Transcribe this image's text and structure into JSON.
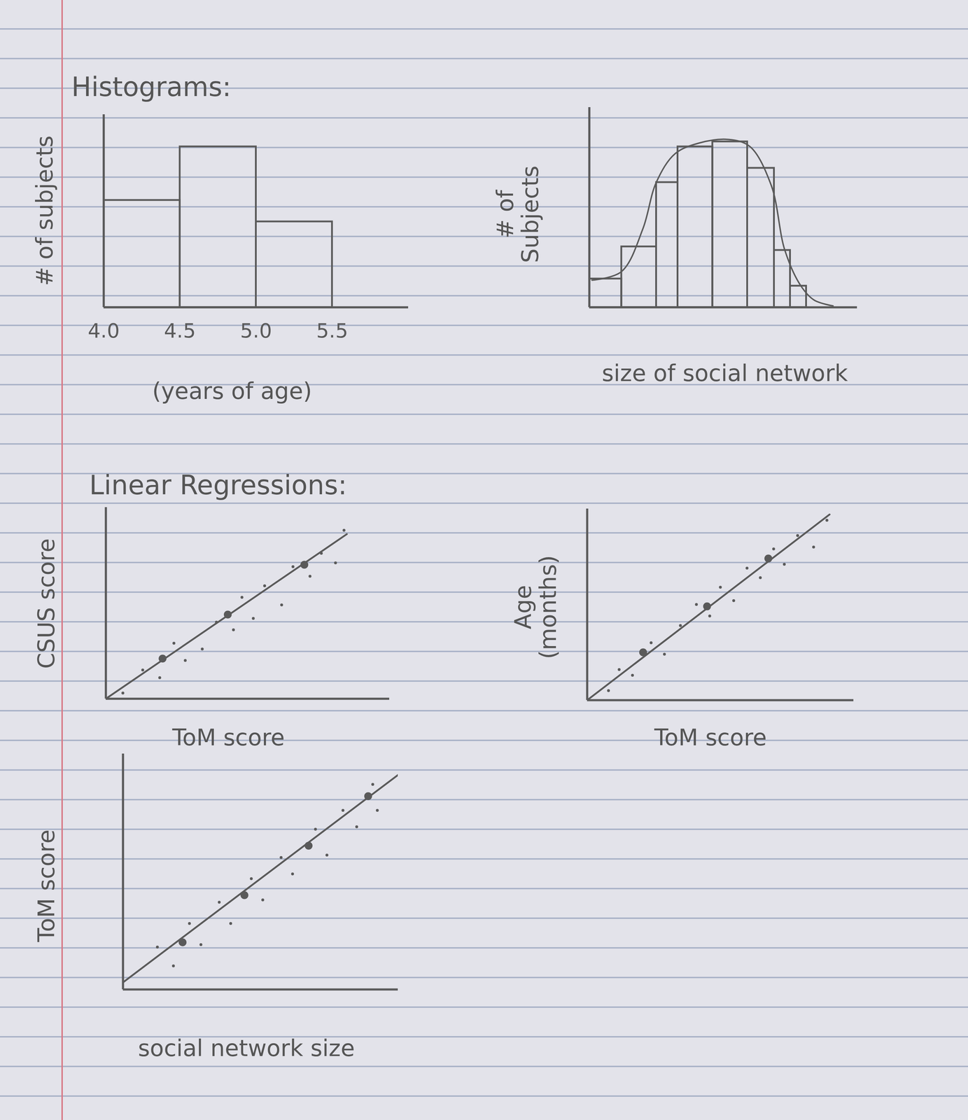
{
  "chart_data": [
    {
      "type": "histogram",
      "title": "Histograms:",
      "x_label": "(years of age)",
      "y_label": "# of subjects",
      "bins": [
        4,
        4.5,
        5,
        5.5
      ],
      "counts": [
        10,
        15,
        8
      ],
      "xlim": [
        4,
        6
      ],
      "ylim": [
        0,
        18
      ],
      "xticks": [
        4,
        4.5,
        5,
        5.5
      ],
      "tick_labels": "x",
      "color": "#5a5a5a"
    },
    {
      "type": "histogram",
      "x_label": "size of social network",
      "y_label": "# of Subjects",
      "bins": [
        0,
        1.2,
        2.5,
        3.3,
        4.6,
        5.9,
        6.9,
        7.5,
        8.1
      ],
      "counts": [
        40,
        85,
        175,
        225,
        232,
        195,
        80,
        30
      ],
      "curve": {
        "x": [
          0.1,
          1.2,
          2,
          2.5,
          3.2,
          4.1,
          5.2,
          6,
          6.8,
          7.3,
          7.9,
          8.4,
          9.1
        ],
        "values": [
          38,
          50,
          110,
          175,
          215,
          230,
          235,
          225,
          170,
          80,
          30,
          10,
          2
        ]
      },
      "xlim": [
        0,
        10
      ],
      "ylim": [
        0,
        280
      ],
      "tick_labels": false,
      "color": "#5a5a5a"
    },
    {
      "type": "scatter",
      "title": "Linear Regressions:",
      "x_label": "ToM score",
      "y_label": "CSUS score",
      "x": [
        0.6,
        1.3,
        1.9,
        2.4,
        2.8,
        3.4,
        3.9,
        4.5,
        4.8,
        5.2,
        5.6,
        6.2,
        6.6,
        7.2,
        7.6,
        8.1,
        8.4
      ],
      "values": [
        0.3,
        1.5,
        1.1,
        2.9,
        2.0,
        2.6,
        4.0,
        3.6,
        5.3,
        4.2,
        5.9,
        4.9,
        6.9,
        6.4,
        7.6,
        7.1,
        8.8
      ],
      "line": {
        "x": [
          0,
          8.5
        ],
        "values": [
          0,
          8.6
        ]
      },
      "highlight": {
        "x": [
          2.0,
          4.3,
          7.0
        ],
        "values": [
          2.1,
          4.4,
          7.0
        ]
      },
      "xlim": [
        0,
        10
      ],
      "ylim": [
        0,
        10
      ],
      "tick_labels": false,
      "color": "#5a5a5a"
    },
    {
      "type": "scatter",
      "x_label": "ToM score",
      "y_label": "Age (months)",
      "x": [
        0.8,
        1.2,
        1.7,
        2.4,
        2.9,
        3.5,
        4.1,
        4.6,
        5.0,
        5.5,
        6.0,
        6.5,
        7.0,
        7.4,
        7.9,
        8.5,
        9.0
      ],
      "values": [
        0.5,
        1.6,
        1.3,
        3.0,
        2.4,
        3.9,
        5.0,
        4.4,
        5.9,
        5.2,
        6.9,
        6.4,
        7.9,
        7.1,
        8.6,
        8.0,
        9.4
      ],
      "line": {
        "x": [
          0,
          9.1
        ],
        "values": [
          0,
          9.7
        ]
      },
      "highlight": {
        "x": [
          2.1,
          4.5,
          6.8
        ],
        "values": [
          2.5,
          4.9,
          7.4
        ]
      },
      "xlim": [
        0,
        10
      ],
      "ylim": [
        0,
        10
      ],
      "tick_labels": false,
      "color": "#5a5a5a"
    },
    {
      "type": "scatter",
      "x_label": "social network size",
      "y_label": "ToM score",
      "x": [
        1.5,
        2.2,
        2.9,
        3.4,
        4.2,
        4.7,
        5.6,
        6.1,
        6.9,
        7.4,
        8.4,
        8.9,
        9.6,
        10.2,
        10.9,
        11.1
      ],
      "values": [
        1.8,
        1.0,
        2.8,
        1.9,
        3.7,
        2.8,
        4.7,
        3.8,
        5.6,
        4.9,
        6.8,
        5.7,
        7.6,
        6.9,
        8.7,
        7.6
      ],
      "line": {
        "x": [
          0,
          12
        ],
        "values": [
          0.3,
          9.1
        ]
      },
      "highlight": {
        "x": [
          2.6,
          5.3,
          8.1,
          10.7
        ],
        "values": [
          2.0,
          4.0,
          6.1,
          8.2
        ]
      },
      "xlim": [
        0,
        12
      ],
      "ylim": [
        0,
        10
      ],
      "tick_labels": false,
      "color": "#5a5a5a"
    }
  ]
}
